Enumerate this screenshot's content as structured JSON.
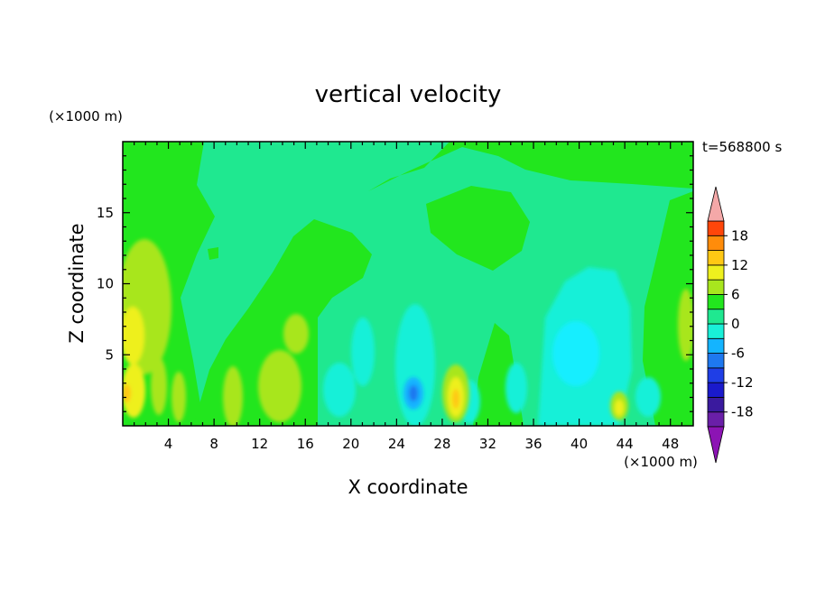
{
  "chart_data": {
    "type": "heatmap",
    "title": "vertical velocity",
    "xlabel": "X coordinate",
    "ylabel": "Z coordinate",
    "x_unit": "(×1000 m)",
    "y_unit": "(×1000 m)",
    "time_label": "t=568800 s",
    "xlim": [
      0,
      50
    ],
    "ylim": [
      0,
      20
    ],
    "x_ticks": [
      4,
      8,
      12,
      16,
      20,
      24,
      28,
      32,
      36,
      40,
      44,
      48
    ],
    "y_ticks": [
      5,
      10,
      15
    ],
    "colorbar": {
      "levels": [
        -21,
        -18,
        -15,
        -12,
        -9,
        -6,
        -3,
        0,
        3,
        6,
        9,
        12,
        15,
        18,
        21
      ],
      "tick_values": [
        18,
        12,
        6,
        0,
        -6,
        -12,
        -18
      ],
      "colors": [
        "#6a1fa8",
        "#3a1a9e",
        "#1a1acc",
        "#1f3ee6",
        "#1e78f0",
        "#14b4ff",
        "#19f0d8",
        "#1fe890",
        "#22e61e",
        "#a8e61e",
        "#eef01e",
        "#ffc814",
        "#ff8c0a",
        "#ff460a",
        "#e61414"
      ],
      "over_color": "#f4a8a8",
      "under_color": "#8c14b4",
      "extend": "both"
    },
    "background_level": "0 to 3",
    "features": [
      {
        "x": 1.0,
        "z": 6.5,
        "value": 6
      },
      {
        "x": 1.0,
        "z": 2.5,
        "value": 6
      },
      {
        "x": 4.0,
        "z": 9.0,
        "value": 3
      },
      {
        "x": 10.0,
        "z": 2.5,
        "value": 6
      },
      {
        "x": 14.5,
        "z": 2.8,
        "value": 3
      },
      {
        "x": 18.5,
        "z": 2.5,
        "value": -3
      },
      {
        "x": 22.0,
        "z": 5.0,
        "value": -3
      },
      {
        "x": 25.5,
        "z": 2.3,
        "value": -9
      },
      {
        "x": 29.5,
        "z": 2.0,
        "value": 9
      },
      {
        "x": 33.0,
        "z": 5.0,
        "value": 0
      },
      {
        "x": 39.5,
        "z": 6.0,
        "value": -6
      },
      {
        "x": 43.5,
        "z": 1.5,
        "value": 6
      },
      {
        "x": 49.0,
        "z": 7.0,
        "value": 3
      },
      {
        "x": 41.0,
        "z": 18.5,
        "value": 0
      },
      {
        "x": 33.0,
        "z": 15.0,
        "value": 0
      }
    ]
  }
}
